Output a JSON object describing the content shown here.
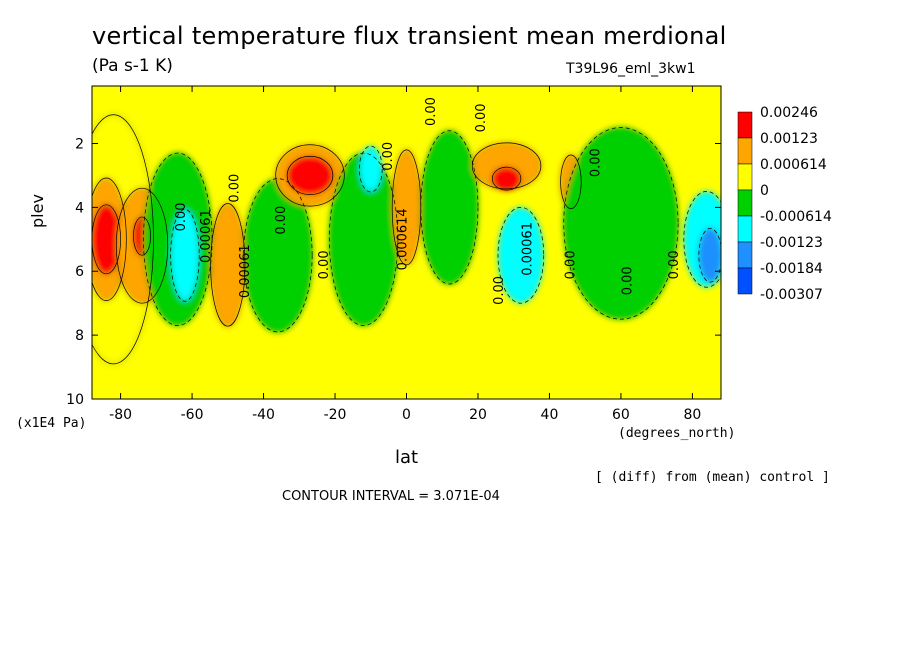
{
  "chart_data": {
    "type": "heatmap",
    "title": "vertical temperature flux transient mean merdional",
    "units": "(Pa s-1 K)",
    "run_label": "T39L96_eml_3kw1",
    "xlabel": "lat",
    "x_unit": "(degrees_north)",
    "ylabel": "plev",
    "y_unit": "(x1E4 Pa)",
    "x_ticks": [
      "-80",
      "-60",
      "-40",
      "-20",
      "0",
      "20",
      "40",
      "60",
      "80"
    ],
    "x_tick_values": [
      -80,
      -60,
      -40,
      -20,
      0,
      20,
      40,
      60,
      80
    ],
    "y_ticks": [
      "2",
      "4",
      "6",
      "8",
      "10"
    ],
    "y_tick_values": [
      2,
      4,
      6,
      8,
      10
    ],
    "xlim": [
      -88,
      88
    ],
    "ylim": [
      10,
      0.2
    ],
    "diff_note": "[ (diff) from (mean) control ]",
    "contour_interval": "CONTOUR INTERVAL = 3.071E-04",
    "legend": [
      {
        "label": "0.00246",
        "color": "#ff0000"
      },
      {
        "label": "0.00123",
        "color": "#ffa500"
      },
      {
        "label": "0.000614",
        "color": "#ffff00"
      },
      {
        "label": "0",
        "color": "#00d000"
      },
      {
        "label": "-0.000614",
        "color": "#00ffff"
      },
      {
        "label": "-0.00123",
        "color": "#1e90ff"
      },
      {
        "label": "-0.00184",
        "color": "#0050ff"
      },
      {
        "label": "-0.00307",
        "color": null
      }
    ],
    "contour_labels": [
      {
        "text": "0.00",
        "lat": -62,
        "plev": 4.3
      },
      {
        "text": "0.00061",
        "lat": -55,
        "plev": 4.9
      },
      {
        "text": "0.00",
        "lat": -47,
        "plev": 3.4
      },
      {
        "text": "0.00061",
        "lat": -44,
        "plev": 6.0
      },
      {
        "text": "0.00",
        "lat": -34,
        "plev": 4.4
      },
      {
        "text": "0.00",
        "lat": -22,
        "plev": 5.8
      },
      {
        "text": "0.00",
        "lat": -4,
        "plev": 2.4
      },
      {
        "text": "0.000614",
        "lat": 0,
        "plev": 5.0
      },
      {
        "text": "0.00",
        "lat": 8,
        "plev": 1.0
      },
      {
        "text": "0.00",
        "lat": 22,
        "plev": 1.2
      },
      {
        "text": "0.00",
        "lat": 27,
        "plev": 6.6
      },
      {
        "text": "0.00061",
        "lat": 35,
        "plev": 5.3
      },
      {
        "text": "0.00",
        "lat": 47,
        "plev": 5.8
      },
      {
        "text": "0.00",
        "lat": 54,
        "plev": 2.6
      },
      {
        "text": "0.00",
        "lat": 63,
        "plev": 6.3
      },
      {
        "text": "0.00",
        "lat": 76,
        "plev": 5.8
      }
    ],
    "fields": [
      {
        "level": "yellow",
        "lat": -82,
        "plev": 5.0,
        "wlat": 7,
        "wplev": 6.5
      },
      {
        "level": "orange",
        "lat": -84,
        "plev": 5.0,
        "wlat": 3.5,
        "wplev": 3.2
      },
      {
        "level": "red",
        "lat": -84,
        "plev": 5.0,
        "wlat": 2.5,
        "wplev": 1.8
      },
      {
        "level": "orange",
        "lat": -74,
        "plev": 5.2,
        "wlat": 4.5,
        "wplev": 3.0
      },
      {
        "level": "red",
        "lat": -74,
        "plev": 4.9,
        "wlat": 1.5,
        "wplev": 1.0
      },
      {
        "level": "green",
        "lat": -64,
        "plev": 5.0,
        "wlat": 6,
        "wplev": 4.5
      },
      {
        "level": "cyan",
        "lat": -62,
        "plev": 5.5,
        "wlat": 2.5,
        "wplev": 2.4
      },
      {
        "level": "orange",
        "lat": -50,
        "plev": 5.8,
        "wlat": 3,
        "wplev": 3.2
      },
      {
        "level": "green",
        "lat": -36,
        "plev": 5.5,
        "wlat": 6,
        "wplev": 4.0
      },
      {
        "level": "orange",
        "lat": -27,
        "plev": 3.0,
        "wlat": 6,
        "wplev": 1.6
      },
      {
        "level": "red",
        "lat": -27,
        "plev": 3.0,
        "wlat": 4,
        "wplev": 1.0
      },
      {
        "level": "green",
        "lat": -12,
        "plev": 5.0,
        "wlat": 6,
        "wplev": 4.5
      },
      {
        "level": "cyan",
        "lat": -10,
        "plev": 2.8,
        "wlat": 2,
        "wplev": 1.2
      },
      {
        "level": "orange",
        "lat": 0,
        "plev": 4.0,
        "wlat": 2.5,
        "wplev": 3.0
      },
      {
        "level": "green",
        "lat": 12,
        "plev": 4.0,
        "wlat": 5,
        "wplev": 4.0
      },
      {
        "level": "orange",
        "lat": 28,
        "plev": 2.7,
        "wlat": 6,
        "wplev": 1.2
      },
      {
        "level": "red",
        "lat": 28,
        "plev": 3.1,
        "wlat": 2.5,
        "wplev": 0.6
      },
      {
        "level": "cyan",
        "lat": 32,
        "plev": 5.5,
        "wlat": 4,
        "wplev": 2.5
      },
      {
        "level": "orange",
        "lat": 46,
        "plev": 3.2,
        "wlat": 1.8,
        "wplev": 1.4
      },
      {
        "level": "green",
        "lat": 60,
        "plev": 4.5,
        "wlat": 10,
        "wplev": 5.0
      },
      {
        "level": "cyan",
        "lat": 84,
        "plev": 5.0,
        "wlat": 4,
        "wplev": 2.5
      },
      {
        "level": "blue",
        "lat": 85,
        "plev": 5.5,
        "wlat": 2,
        "wplev": 1.4
      }
    ],
    "colors": {
      "red": "#ff0000",
      "orange": "#ffa500",
      "yellow": "#ffff00",
      "green": "#00d000",
      "cyan": "#00ffff",
      "blue": "#1e90ff",
      "darkblue": "#0050ff",
      "background_field": "#00d000"
    }
  }
}
